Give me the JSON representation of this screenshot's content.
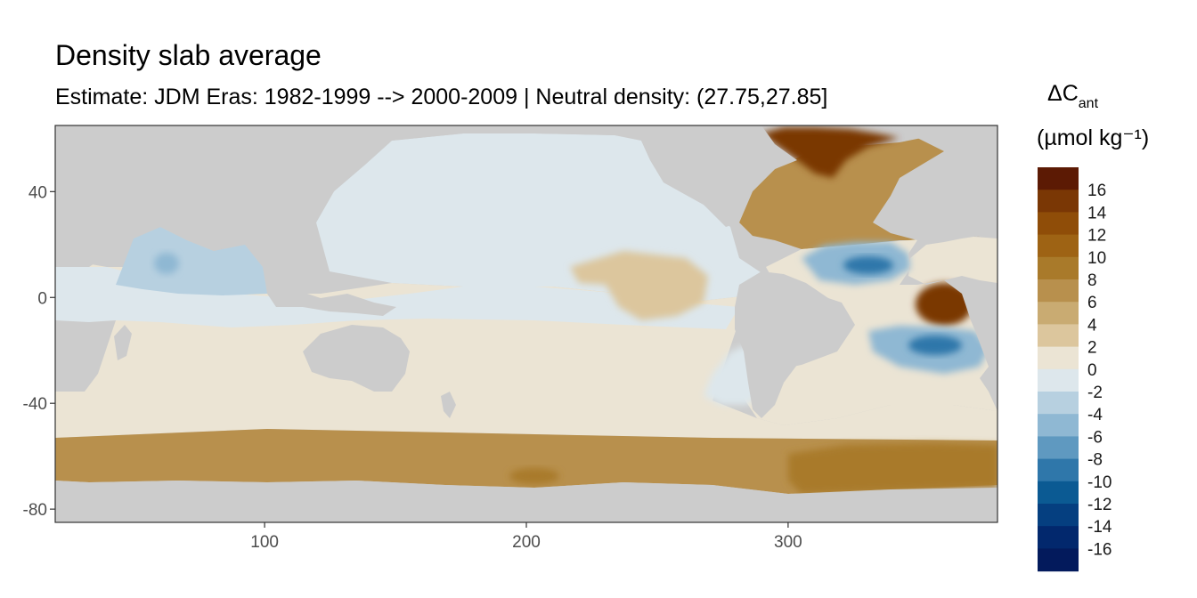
{
  "chart_data": {
    "type": "heatmap",
    "title": "Density slab average",
    "subtitle": "Estimate: JDM Eras: 1982-1999 --> 2000-2009 | Neutral density: (27.75,27.85]",
    "xlabel": "",
    "ylabel": "",
    "xlim": [
      20,
      380
    ],
    "ylim": [
      -85,
      65
    ],
    "x_ticks": [
      100,
      200,
      300
    ],
    "y_ticks": [
      40,
      0,
      -40,
      -80
    ],
    "x_tick_labels": [
      "100",
      "200",
      "300"
    ],
    "y_tick_labels": [
      "40",
      "0",
      "-40",
      "-80"
    ],
    "land_color": "#cccccc",
    "legend": {
      "title_main": "ΔC",
      "title_sub": "ant",
      "units": "(µmol kg⁻¹)",
      "labels": [
        "16",
        "14",
        "12",
        "10",
        "8",
        "6",
        "4",
        "2",
        "0",
        "-2",
        "-4",
        "-6",
        "-8",
        "-10",
        "-12",
        "-14",
        "-16"
      ],
      "bins": [
        {
          "color": "#5c1a04"
        },
        {
          "color": "#7a3705"
        },
        {
          "color": "#8f4d08"
        },
        {
          "color": "#9e6314"
        },
        {
          "color": "#a97a2a"
        },
        {
          "color": "#b8904d"
        },
        {
          "color": "#c9ab72"
        },
        {
          "color": "#dcc69d"
        },
        {
          "color": "#ebe4d4"
        },
        {
          "color": "#dde7ec"
        },
        {
          "color": "#b7d0e0"
        },
        {
          "color": "#8fb8d3"
        },
        {
          "color": "#5f99c0"
        },
        {
          "color": "#2f77aa"
        },
        {
          "color": "#0b5a93"
        },
        {
          "color": "#053f80"
        },
        {
          "color": "#02286d"
        },
        {
          "color": "#031a5c"
        }
      ]
    },
    "regions": [
      {
        "name": "Southern Ocean band",
        "value": 7
      },
      {
        "name": "Antarctic shelf near 200E",
        "value": 9
      },
      {
        "name": "Atlantic sector Southern Ocean",
        "value": 9
      },
      {
        "name": "South Indian / Pacific",
        "value": 2
      },
      {
        "name": "Equatorial Indian / Pacific",
        "value": -1
      },
      {
        "name": "North Pacific",
        "value": -1
      },
      {
        "name": "Arabian Sea",
        "value": -3
      },
      {
        "name": "Arabian Sea core",
        "value": -5
      },
      {
        "name": "Central Pacific lobe",
        "value": 3
      },
      {
        "name": "Northwest Atlantic",
        "value": 7
      },
      {
        "name": "Labrador / Irminger Sea",
        "value": 15
      },
      {
        "name": "North Atlantic tropical gyre",
        "value": -5
      },
      {
        "name": "North Atlantic gyre core",
        "value": -9
      },
      {
        "name": "Eastern equatorial Atlantic",
        "value": 15
      },
      {
        "name": "South Atlantic gyre",
        "value": -5
      },
      {
        "name": "South Atlantic gyre core",
        "value": -8
      },
      {
        "name": "Argentine Basin",
        "value": -1
      }
    ]
  }
}
